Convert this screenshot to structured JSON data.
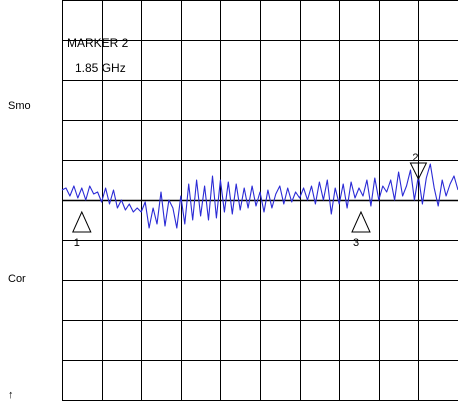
{
  "side_labels": {
    "smo": "Smo",
    "cor": "Cor",
    "arrow": "↑"
  },
  "marker_readout": {
    "title": "MARKER 2",
    "value": "1.85 GHz"
  },
  "chart_data": {
    "type": "line",
    "title": "",
    "xlabel": "",
    "ylabel": "",
    "grid": true,
    "grid_divisions": {
      "x": 10,
      "y": 10
    },
    "xlim": [
      0,
      10
    ],
    "ylim": [
      -5,
      5
    ],
    "reference_level": 0,
    "trace_color": "#2b2bd6",
    "series": [
      {
        "x": [
          0,
          0.1,
          0.2,
          0.3,
          0.4,
          0.5,
          0.6,
          0.7,
          0.8,
          0.9,
          1.0,
          1.1,
          1.2,
          1.3,
          1.4,
          1.5,
          1.6,
          1.7,
          1.8,
          1.9,
          2.0,
          2.1,
          2.2,
          2.3,
          2.4,
          2.5,
          2.6,
          2.7,
          2.8,
          2.9,
          3.0,
          3.1,
          3.2,
          3.3,
          3.4,
          3.5,
          3.6,
          3.7,
          3.8,
          3.9,
          4.0,
          4.1,
          4.2,
          4.3,
          4.4,
          4.5,
          4.6,
          4.7,
          4.8,
          4.9,
          5.0,
          5.1,
          5.2,
          5.3,
          5.4,
          5.5,
          5.6,
          5.7,
          5.8,
          5.9,
          6.0,
          6.1,
          6.2,
          6.3,
          6.4,
          6.5,
          6.6,
          6.7,
          6.8,
          6.9,
          7.0,
          7.1,
          7.2,
          7.3,
          7.4,
          7.5,
          7.6,
          7.7,
          7.8,
          7.9,
          8.0,
          8.1,
          8.2,
          8.3,
          8.4,
          8.5,
          8.6,
          8.7,
          8.8,
          8.9,
          9.0,
          9.1,
          9.2,
          9.3,
          9.4,
          9.5,
          9.6,
          9.7,
          9.8,
          9.9,
          10.0
        ],
        "values": [
          0.25,
          0.3,
          0.1,
          0.35,
          0.05,
          0.3,
          0.0,
          0.35,
          0.15,
          0.2,
          -0.05,
          0.3,
          -0.1,
          0.25,
          -0.2,
          0.0,
          -0.25,
          -0.1,
          -0.3,
          -0.2,
          -0.3,
          -0.05,
          -0.7,
          -0.2,
          -0.6,
          0.2,
          -0.65,
          0.0,
          -0.2,
          -0.7,
          0.1,
          -0.6,
          0.4,
          -0.5,
          0.5,
          -0.4,
          0.35,
          -0.5,
          0.6,
          -0.45,
          0.5,
          -0.3,
          0.45,
          -0.35,
          0.4,
          -0.25,
          0.3,
          -0.2,
          0.35,
          -0.15,
          0.2,
          -0.3,
          0.25,
          -0.2,
          0.15,
          0.35,
          -0.1,
          0.3,
          -0.05,
          0.2,
          0.05,
          0.3,
          0.0,
          0.35,
          -0.1,
          0.45,
          0.0,
          0.5,
          -0.35,
          0.3,
          -0.1,
          0.4,
          -0.2,
          0.45,
          0.05,
          0.3,
          0.1,
          0.5,
          -0.15,
          0.55,
          0.0,
          0.35,
          0.2,
          0.5,
          0.0,
          0.7,
          0.1,
          0.35,
          0.75,
          0.0,
          0.6,
          -0.1,
          0.55,
          0.9,
          0.3,
          -0.15,
          0.5,
          0.1,
          0.4,
          0.6,
          0.25
        ]
      }
    ],
    "markers": [
      {
        "id": "1",
        "x": 0.5,
        "y": -0.3,
        "pointing": "up"
      },
      {
        "id": "2",
        "x": 9.0,
        "y": 0.6,
        "pointing": "down",
        "active": true
      },
      {
        "id": "3",
        "x": 7.55,
        "y": -0.3,
        "pointing": "up"
      }
    ]
  }
}
